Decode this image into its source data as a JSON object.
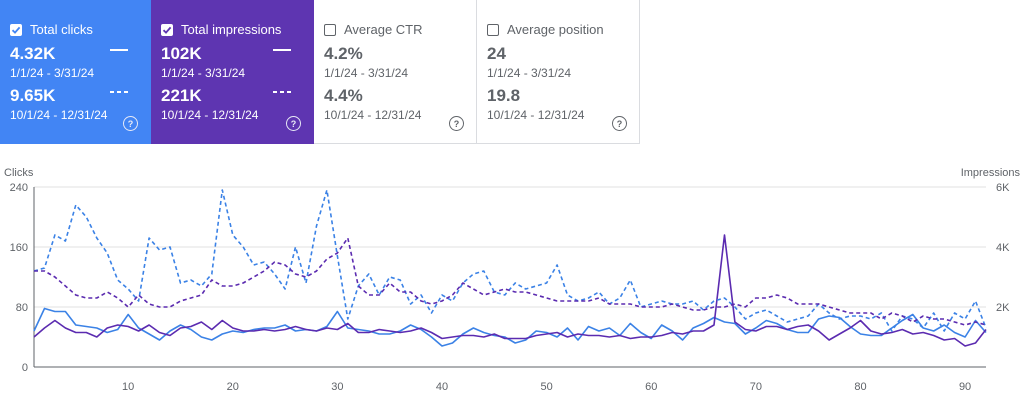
{
  "cards": [
    {
      "label": "Total clicks",
      "checked": true,
      "v1": "4.32K",
      "r1": "1/1/24 - 3/31/24",
      "v2": "9.65K",
      "r2": "10/1/24 - 12/31/24",
      "help": "?"
    },
    {
      "label": "Total impressions",
      "checked": true,
      "v1": "102K",
      "r1": "1/1/24 - 3/31/24",
      "v2": "221K",
      "r2": "10/1/24 - 12/31/24",
      "help": "?"
    },
    {
      "label": "Average CTR",
      "checked": false,
      "v1": "4.2%",
      "r1": "1/1/24 - 3/31/24",
      "v2": "4.4%",
      "r2": "10/1/24 - 12/31/24",
      "help": "?"
    },
    {
      "label": "Average position",
      "checked": false,
      "v1": "24",
      "r1": "1/1/24 - 3/31/24",
      "v2": "19.8",
      "r2": "10/1/24 - 12/31/24",
      "help": "?"
    }
  ],
  "colors": {
    "clicks": "#4285f4",
    "impressions": "#5e35b1",
    "clicks_line": "#3b82e6",
    "impr_line": "#5b2bb0"
  },
  "chart_data": {
    "type": "line",
    "ylabel_left": "Clicks",
    "ylabel_right": "Impressions",
    "yticks_left": [
      "0",
      "80",
      "160",
      "240"
    ],
    "yticks_right": [
      "",
      "2K",
      "4K",
      "6K"
    ],
    "xticks": [
      "10",
      "20",
      "30",
      "40",
      "50",
      "60",
      "70",
      "80",
      "90"
    ],
    "ylim_left": [
      0,
      240
    ],
    "ylim_right": [
      0,
      6000
    ],
    "xlim": [
      1,
      92
    ],
    "grid": true,
    "series": [
      {
        "axis": "right",
        "style": "solid",
        "color": "#3b82e6",
        "values": [
          1200,
          1950,
          1850,
          1850,
          1400,
          1350,
          1300,
          1150,
          1250,
          1750,
          1300,
          1100,
          900,
          1200,
          1400,
          1250,
          1000,
          900,
          1100,
          1200,
          1150,
          1250,
          1300,
          1300,
          1400,
          1200,
          1250,
          1200,
          1350,
          1850,
          1300,
          1250,
          1200,
          1100,
          1100,
          1200,
          1400,
          1250,
          1000,
          700,
          800,
          1100,
          1300,
          1150,
          1050,
          1000,
          800,
          900,
          1200,
          1150,
          1000,
          1300,
          900,
          1350,
          1200,
          1300,
          1050,
          1450,
          1150,
          950,
          1400,
          1200,
          900,
          1300,
          1450,
          1650,
          1500,
          1450,
          1100,
          1300,
          1550,
          1450,
          1250,
          1150,
          1150,
          1600,
          1700,
          1650,
          1350,
          1100,
          1050,
          1050,
          1300,
          1550,
          1750,
          1300,
          1200,
          1400,
          1150,
          1000,
          1550,
          1150
        ]
      },
      {
        "axis": "right",
        "style": "solid",
        "color": "#5b2bb0",
        "values": [
          1000,
          1300,
          1550,
          1300,
          1150,
          1150,
          1000,
          1300,
          1400,
          1350,
          1200,
          1400,
          1150,
          1050,
          1300,
          1350,
          1500,
          1250,
          1550,
          1300,
          1200,
          1200,
          1250,
          1200,
          1250,
          1350,
          1250,
          1200,
          1300,
          1250,
          1450,
          1150,
          1150,
          1250,
          1200,
          1150,
          1200,
          1300,
          1150,
          950,
          1000,
          1050,
          1050,
          1000,
          1100,
          950,
          950,
          950,
          1050,
          1100,
          1150,
          1000,
          1100,
          1050,
          1050,
          1000,
          1050,
          950,
          1000,
          1000,
          1050,
          1150,
          1100,
          1200,
          1200,
          1400,
          4400,
          1500,
          1250,
          1200,
          1350,
          1350,
          1250,
          1350,
          1400,
          1200,
          900,
          1100,
          1300,
          1550,
          1200,
          1100,
          1150,
          1250,
          1100,
          1150,
          1050,
          900,
          950,
          700,
          800,
          1250
        ]
      },
      {
        "axis": "right",
        "style": "dashed",
        "color": "#3b82e6",
        "values": [
          3200,
          3300,
          4400,
          4200,
          5400,
          5000,
          4300,
          3800,
          2900,
          2600,
          2200,
          4300,
          3900,
          4000,
          2800,
          2900,
          2700,
          3100,
          5900,
          4400,
          4000,
          3400,
          3500,
          3100,
          2600,
          4000,
          2800,
          4700,
          5900,
          3700,
          1600,
          2700,
          3100,
          2400,
          3000,
          2900,
          2100,
          2400,
          1800,
          2400,
          2200,
          2800,
          3100,
          3200,
          2500,
          2400,
          2800,
          2600,
          2700,
          2800,
          3400,
          2400,
          2200,
          2300,
          2500,
          2100,
          2300,
          2900,
          2000,
          2100,
          2200,
          2100,
          2100,
          2200,
          1900,
          2200,
          2300,
          2000,
          1600,
          1800,
          1900,
          1700,
          1500,
          1600,
          1700,
          2100,
          1800,
          1600,
          1700,
          1700,
          1600,
          1800,
          1200,
          1700,
          1600,
          1300,
          1800,
          1200,
          1800,
          1600,
          2200,
          1300
        ]
      },
      {
        "axis": "right",
        "style": "dashed",
        "color": "#5b2bb0",
        "values": [
          3200,
          3200,
          3000,
          2700,
          2400,
          2300,
          2300,
          2500,
          2300,
          2000,
          2400,
          2100,
          2000,
          2000,
          2200,
          2300,
          2400,
          2900,
          2700,
          2700,
          2800,
          3000,
          3200,
          3500,
          3400,
          3100,
          3000,
          3200,
          3600,
          3800,
          4300,
          2700,
          2400,
          2400,
          2800,
          2500,
          2500,
          2200,
          2100,
          2200,
          2400,
          2800,
          2600,
          2400,
          2500,
          2600,
          2500,
          2500,
          2400,
          2300,
          2200,
          2200,
          2200,
          2200,
          2300,
          2100,
          2100,
          2100,
          2000,
          2000,
          2000,
          2100,
          2000,
          1900,
          1900,
          2000,
          2000,
          2100,
          2000,
          2300,
          2300,
          2400,
          2300,
          2100,
          2100,
          2100,
          2000,
          1900,
          1800,
          1800,
          1800,
          1600,
          1800,
          1700,
          1500,
          1700,
          1600,
          1600,
          1500,
          1400,
          1500,
          1400
        ]
      }
    ]
  }
}
